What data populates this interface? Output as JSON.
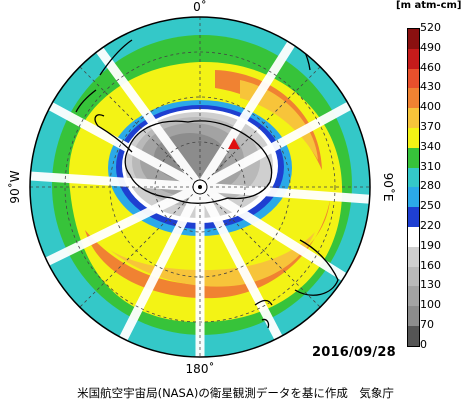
{
  "map": {
    "date": "2016/09/28",
    "credit": "米国航空宇宙局(NASA)の衛星観測データを基に作成　気象庁",
    "longitude_labels": {
      "top": "0˚",
      "bottom": "180˚",
      "left": "90˚W",
      "right": "90˚E"
    },
    "colors": {
      "c0": "#555555",
      "c70": "#777777",
      "c100": "#8c8c8c",
      "c130": "#a3a3a3",
      "c160": "#b9b9b9",
      "c190": "#cfcfcf",
      "c220": "#1e3fd1",
      "c250": "#2ba9e8",
      "c280": "#34c8c8",
      "c310": "#37c33a",
      "c340": "#f3f315",
      "c370": "#f7c43a",
      "c400": "#f08232",
      "c430": "#e8502c",
      "c460": "#c51b1b",
      "c490": "#8a1010"
    },
    "marker_color": "#e01010"
  },
  "colorbar": {
    "unit": "[m atm-cm]",
    "ticks": [
      "520",
      "490",
      "460",
      "430",
      "400",
      "370",
      "340",
      "310",
      "280",
      "250",
      "220",
      "190",
      "160",
      "130",
      "100",
      "70",
      "0"
    ],
    "bands": [
      "#8a1010",
      "#c51b1b",
      "#e8502c",
      "#f08232",
      "#f7c43a",
      "#f3f315",
      "#37c33a",
      "#34c8c8",
      "#2ba9e8",
      "#1e3fd1",
      "#ffffff",
      "#cfcfcf",
      "#b9b9b9",
      "#a3a3a3",
      "#8c8c8c",
      "#555555"
    ]
  }
}
